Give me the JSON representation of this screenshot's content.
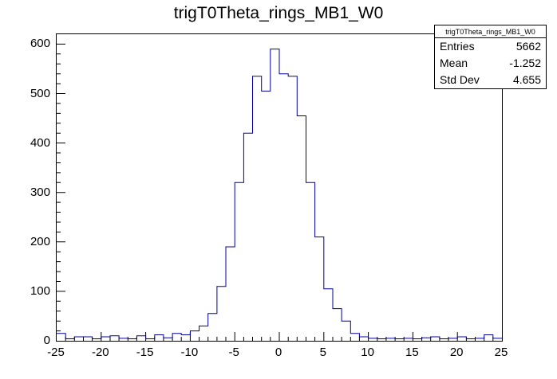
{
  "title": "trigT0Theta_rings_MB1_W0",
  "colors": {
    "line": "#000099",
    "axis": "#000000",
    "background": "#ffffff"
  },
  "stats": {
    "title": "trigT0Theta_rings_MB1_W0",
    "rows": [
      {
        "label": "Entries",
        "value": "5662"
      },
      {
        "label": "Mean",
        "value": "-1.252"
      },
      {
        "label": "Std Dev",
        "value": "4.655"
      }
    ]
  },
  "chart_data": {
    "type": "bar",
    "subtype": "step-histogram",
    "title": "trigT0Theta_rings_MB1_W0",
    "xlabel": "",
    "ylabel": "",
    "xlim": [
      -25,
      25
    ],
    "ylim": [
      0,
      620
    ],
    "grid": false,
    "legend_position": "none",
    "bin_start": -25,
    "bin_width": 1,
    "counts": [
      15,
      4,
      8,
      8,
      4,
      8,
      10,
      5,
      4,
      10,
      4,
      12,
      6,
      15,
      12,
      20,
      30,
      55,
      110,
      190,
      320,
      420,
      535,
      505,
      590,
      540,
      535,
      455,
      320,
      210,
      105,
      65,
      40,
      15,
      8,
      5,
      4,
      5,
      4,
      5,
      4,
      6,
      8,
      4,
      5,
      8,
      4,
      5,
      12,
      5
    ],
    "x_ticks": [
      -25,
      -20,
      -15,
      -10,
      -5,
      0,
      5,
      10,
      15,
      20,
      25
    ],
    "y_ticks": [
      0,
      100,
      200,
      300,
      400,
      500,
      600
    ],
    "x_minor_step": 1,
    "y_minor_step": 20
  }
}
